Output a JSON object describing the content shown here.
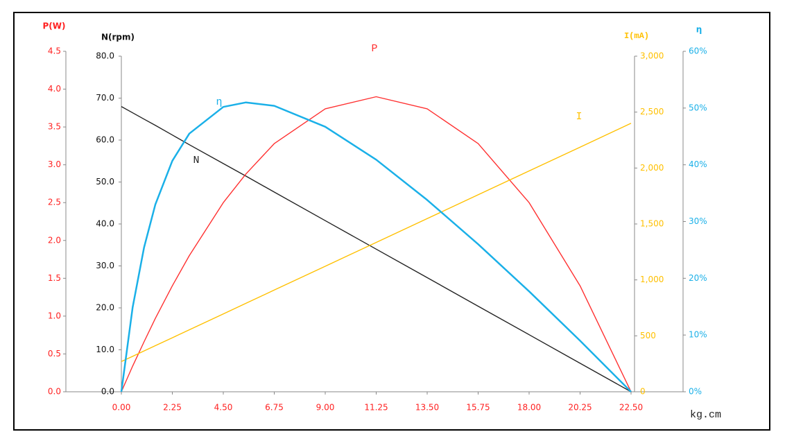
{
  "chart_data": {
    "type": "line",
    "x": [
      0,
      0.5,
      1,
      1.5,
      2.25,
      3,
      4.5,
      5.5,
      6.75,
      9,
      11.25,
      13.5,
      15.75,
      18,
      20.25,
      22.5
    ],
    "xlim": [
      0,
      22.5
    ],
    "xticks": [
      {
        "value": 0,
        "label": "0.00"
      },
      {
        "value": 2.25,
        "label": "2.25"
      },
      {
        "value": 4.5,
        "label": "4.50"
      },
      {
        "value": 6.75,
        "label": "6.75"
      },
      {
        "value": 9,
        "label": "9.00"
      },
      {
        "value": 11.25,
        "label": "11.25"
      },
      {
        "value": 13.5,
        "label": "13.50"
      },
      {
        "value": 15.75,
        "label": "15.75"
      },
      {
        "value": 18,
        "label": "18.00"
      },
      {
        "value": 20.25,
        "label": "20.25"
      },
      {
        "value": 22.5,
        "label": "22.50"
      }
    ],
    "xlabel": "kg.cm",
    "xcolor": "#ff2020",
    "axes": [
      {
        "title": "P(W)",
        "color": "#ff2020",
        "lim": [
          0,
          4.5
        ],
        "ticks": [
          {
            "value": 0,
            "label": "0.0"
          },
          {
            "value": 0.5,
            "label": "0.5"
          },
          {
            "value": 1,
            "label": "1.0"
          },
          {
            "value": 1.5,
            "label": "1.5"
          },
          {
            "value": 2,
            "label": "2.0"
          },
          {
            "value": 2.5,
            "label": "2.5"
          },
          {
            "value": 3,
            "label": "3.0"
          },
          {
            "value": 3.5,
            "label": "3.5"
          },
          {
            "value": 4,
            "label": "4.0"
          },
          {
            "value": 4.5,
            "label": "4.5"
          }
        ]
      },
      {
        "title": "N(rpm)",
        "color": "#111111",
        "lim": [
          0,
          80
        ],
        "ticks": [
          {
            "value": 0,
            "label": "0.0"
          },
          {
            "value": 10,
            "label": "10.0"
          },
          {
            "value": 20,
            "label": "20.0"
          },
          {
            "value": 30,
            "label": "30.0"
          },
          {
            "value": 40,
            "label": "40.0"
          },
          {
            "value": 50,
            "label": "50.0"
          },
          {
            "value": 60,
            "label": "60.0"
          },
          {
            "value": 70,
            "label": "70.0"
          },
          {
            "value": 80,
            "label": "80.0"
          }
        ]
      },
      {
        "title": "I(mA)",
        "color": "#ffc000",
        "lim": [
          0,
          3000
        ],
        "ticks": [
          0,
          500,
          {
            "value": 1000,
            "label": "1,000"
          },
          {
            "value": 1500,
            "label": "1,500"
          },
          {
            "value": 2000,
            "label": "2,000"
          },
          {
            "value": 2500,
            "label": "2,500"
          },
          {
            "value": 3000,
            "label": "3,000"
          }
        ]
      },
      {
        "title": "η",
        "color": "#1ab0e8",
        "lim": [
          0,
          60
        ],
        "ticks": [
          {
            "value": 0,
            "label": "0%"
          },
          {
            "value": 10,
            "label": "10%"
          },
          {
            "value": 20,
            "label": "20%"
          },
          {
            "value": 30,
            "label": "30%"
          },
          {
            "value": 40,
            "label": "40%"
          },
          {
            "value": 50,
            "label": "50%"
          },
          {
            "value": 60,
            "label": "60%"
          }
        ]
      }
    ],
    "series": [
      {
        "name": "N",
        "axis": 1,
        "color": "#222222",
        "values": [
          68,
          66.5,
          65,
          63.5,
          61.2,
          58.9,
          54.4,
          51.4,
          47.6,
          40.8,
          34,
          27.2,
          20.4,
          13.6,
          6.8,
          0
        ]
      },
      {
        "name": "P",
        "axis": 0,
        "color": "#ff3030",
        "values": [
          0,
          0.34,
          0.66,
          0.97,
          1.4,
          1.8,
          2.5,
          2.88,
          3.28,
          3.74,
          3.9,
          3.74,
          3.28,
          2.5,
          1.4,
          0
        ]
      },
      {
        "name": "I",
        "axis": 2,
        "color": "#ffc000",
        "values": [
          270,
          317,
          365,
          412,
          483,
          554,
          696,
          791,
          909,
          1122,
          1335,
          1548,
          1761,
          1974,
          2187,
          2400
        ]
      },
      {
        "name": "η",
        "axis": 3,
        "color": "#1ab0e8",
        "values": [
          0,
          14.9,
          25.4,
          33,
          40.7,
          45.5,
          50.2,
          51,
          50.4,
          46.7,
          40.9,
          33.8,
          26,
          17.7,
          9,
          0
        ]
      }
    ]
  }
}
